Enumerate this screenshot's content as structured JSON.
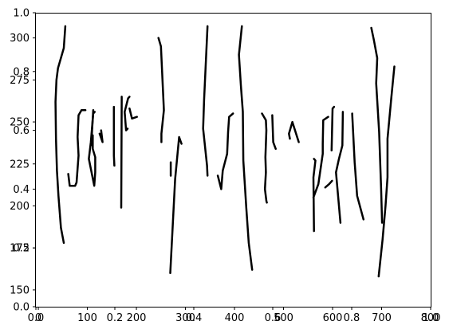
{
  "chart_data": {
    "type": "line",
    "title": "",
    "xlabel": "",
    "ylabel": "",
    "grid": false,
    "legend": "none",
    "stroke_color": "#000000",
    "axes": [
      {
        "name": "normalized",
        "xlim": [
          0.0,
          1.0
        ],
        "ylim": [
          0.0,
          1.0
        ],
        "xticks": [
          "0.0",
          "0.2",
          "0.4",
          "0.6",
          "0.8",
          "1.0"
        ],
        "yticks": [
          "0.0",
          "0.2",
          "0.4",
          "0.6",
          "0.8",
          "1.0"
        ]
      },
      {
        "name": "pixel",
        "xlim": [
          -5,
          800
        ],
        "ylim": [
          140,
          315
        ],
        "xticks": [
          "0",
          "100",
          "200",
          "300",
          "400",
          "500",
          "600",
          "700",
          "800"
        ],
        "yticks": [
          "150",
          "175",
          "200",
          "225",
          "250",
          "275",
          "300"
        ]
      }
    ],
    "series": [
      {
        "points": [
          [
            55,
            307
          ],
          [
            52,
            294
          ],
          [
            40,
            282
          ],
          [
            37,
            275
          ],
          [
            35,
            262
          ],
          [
            36,
            240
          ],
          [
            38,
            221
          ],
          [
            41,
            206
          ],
          [
            46,
            187
          ],
          [
            52,
            178
          ]
        ]
      },
      {
        "points": [
          [
            61,
            219
          ],
          [
            64,
            212
          ],
          [
            75,
            212
          ],
          [
            78,
            214
          ],
          [
            82,
            230
          ],
          [
            80,
            241
          ],
          [
            82,
            254
          ],
          [
            88,
            257
          ],
          [
            96,
            257
          ]
        ]
      },
      {
        "points": [
          [
            111,
            242
          ],
          [
            111,
            234
          ],
          [
            116,
            229
          ],
          [
            116,
            220
          ],
          [
            114,
            212
          ],
          [
            103,
            228
          ],
          [
            107,
            238
          ],
          [
            112,
            255
          ],
          [
            115,
            256
          ]
        ]
      },
      {
        "points": [
          [
            112,
            257
          ],
          [
            109,
            242
          ],
          [
            110,
            236
          ]
        ]
      },
      {
        "points": [
          [
            128,
            245
          ],
          [
            131,
            238
          ],
          [
            125,
            243
          ]
        ]
      },
      {
        "points": [
          [
            154,
            259
          ],
          [
            154,
            230
          ],
          [
            155,
            224
          ]
        ]
      },
      {
        "points": [
          [
            186,
            258
          ],
          [
            191,
            252
          ],
          [
            201,
            253
          ]
        ]
      },
      {
        "points": [
          [
            169,
            199
          ],
          [
            170,
            263
          ],
          [
            170,
            265
          ]
        ]
      },
      {
        "points": [
          [
            186,
            265
          ],
          [
            183,
            264
          ],
          [
            176,
            256
          ],
          [
            179,
            245
          ],
          [
            182,
            246
          ]
        ]
      },
      {
        "points": [
          [
            245,
            300
          ],
          [
            250,
            295
          ],
          [
            256,
            257
          ],
          [
            251,
            243
          ],
          [
            251,
            238
          ]
        ]
      },
      {
        "points": [
          [
            292,
            237
          ],
          [
            287,
            241
          ],
          [
            279,
            216
          ],
          [
            269,
            160
          ]
        ]
      },
      {
        "points": [
          [
            270,
            218
          ],
          [
            270,
            226
          ]
        ]
      },
      {
        "points": [
          [
            345,
            307
          ],
          [
            338,
            263
          ],
          [
            336,
            246
          ],
          [
            344,
            224
          ],
          [
            345,
            218
          ]
        ]
      },
      {
        "points": [
          [
            366,
            218
          ],
          [
            366,
            218
          ],
          [
            373,
            210
          ],
          [
            376,
            221
          ],
          [
            385,
            231
          ],
          [
            387,
            244
          ],
          [
            389,
            253
          ],
          [
            397,
            255
          ]
        ]
      },
      {
        "points": [
          [
            415,
            307
          ],
          [
            409,
            290
          ],
          [
            413,
            272
          ],
          [
            417,
            256
          ],
          [
            418,
            227
          ],
          [
            424,
            199
          ],
          [
            429,
            178
          ],
          [
            436,
            162
          ]
        ]
      },
      {
        "points": [
          [
            456,
            255
          ],
          [
            464,
            251
          ],
          [
            465,
            245
          ],
          [
            463,
            229
          ],
          [
            464,
            220
          ],
          [
            462,
            210
          ],
          [
            465,
            203
          ],
          [
            466,
            202
          ]
        ]
      },
      {
        "points": [
          [
            477,
            254
          ],
          [
            479,
            238
          ],
          [
            484,
            234
          ]
        ]
      },
      {
        "points": [
          [
            513,
            240
          ],
          [
            511,
            243
          ],
          [
            518,
            250
          ],
          [
            531,
            238
          ]
        ]
      },
      {
        "points": [
          [
            561,
            205
          ],
          [
            571,
            213
          ],
          [
            580,
            231
          ],
          [
            580,
            237
          ],
          [
            581,
            251
          ],
          [
            591,
            253
          ]
        ]
      },
      {
        "points": [
          [
            562,
            185
          ],
          [
            561,
            217
          ],
          [
            565,
            227
          ],
          [
            562,
            228
          ]
        ]
      },
      {
        "points": [
          [
            585,
            211
          ],
          [
            593,
            213
          ],
          [
            599,
            215
          ]
        ]
      },
      {
        "points": [
          [
            598,
            233
          ],
          [
            600,
            258
          ],
          [
            603,
            259
          ]
        ]
      },
      {
        "points": [
          [
            640,
            255
          ],
          [
            645,
            226
          ],
          [
            650,
            206
          ],
          [
            663,
            192
          ]
        ]
      },
      {
        "points": [
          [
            616,
            190
          ],
          [
            607,
            220
          ],
          [
            613,
            228
          ],
          [
            620,
            236
          ],
          [
            621,
            256
          ]
        ]
      },
      {
        "points": [
          [
            679,
            306
          ],
          [
            684,
            299
          ],
          [
            691,
            288
          ],
          [
            689,
            273
          ],
          [
            695,
            244
          ],
          [
            699,
            210
          ],
          [
            701,
            190
          ]
        ]
      },
      {
        "points": [
          [
            694,
            158
          ],
          [
            702,
            180
          ],
          [
            708,
            200
          ],
          [
            712,
            217
          ],
          [
            712,
            240
          ],
          [
            720,
            265
          ],
          [
            726,
            283
          ]
        ]
      }
    ]
  }
}
